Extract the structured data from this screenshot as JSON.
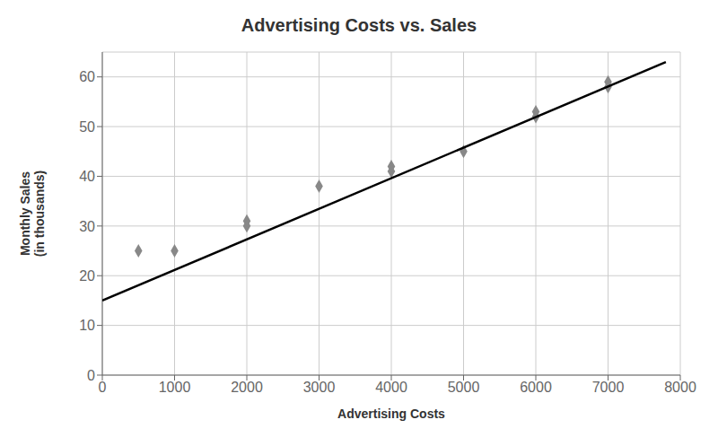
{
  "chart_data": {
    "type": "scatter",
    "title": "Advertising Costs vs. Sales",
    "x_label": "Advertising Costs",
    "y_label": "Monthly Sales\n(in thousands)",
    "series": [
      {
        "type": "scatter",
        "color": "#888888",
        "marker": "diamond",
        "x": [
          500,
          1000,
          2000,
          2000,
          3000,
          4000,
          4000,
          5000,
          6000,
          6000,
          7000,
          7000
        ],
        "values": [
          25,
          25,
          31,
          30,
          38,
          42,
          41,
          45,
          53,
          52,
          58,
          59
        ]
      },
      {
        "type": "line",
        "color": "#000000",
        "line_style": "solid",
        "x": [
          0,
          7800
        ],
        "values": [
          15,
          63
        ]
      }
    ],
    "xlim": [
      0,
      8000
    ],
    "ylim": [
      0,
      65
    ],
    "xticks": [
      0,
      1000,
      2000,
      3000,
      4000,
      5000,
      6000,
      7000,
      8000
    ],
    "yticks": [
      0,
      10,
      20,
      30,
      40,
      50,
      60
    ],
    "grid": true
  }
}
